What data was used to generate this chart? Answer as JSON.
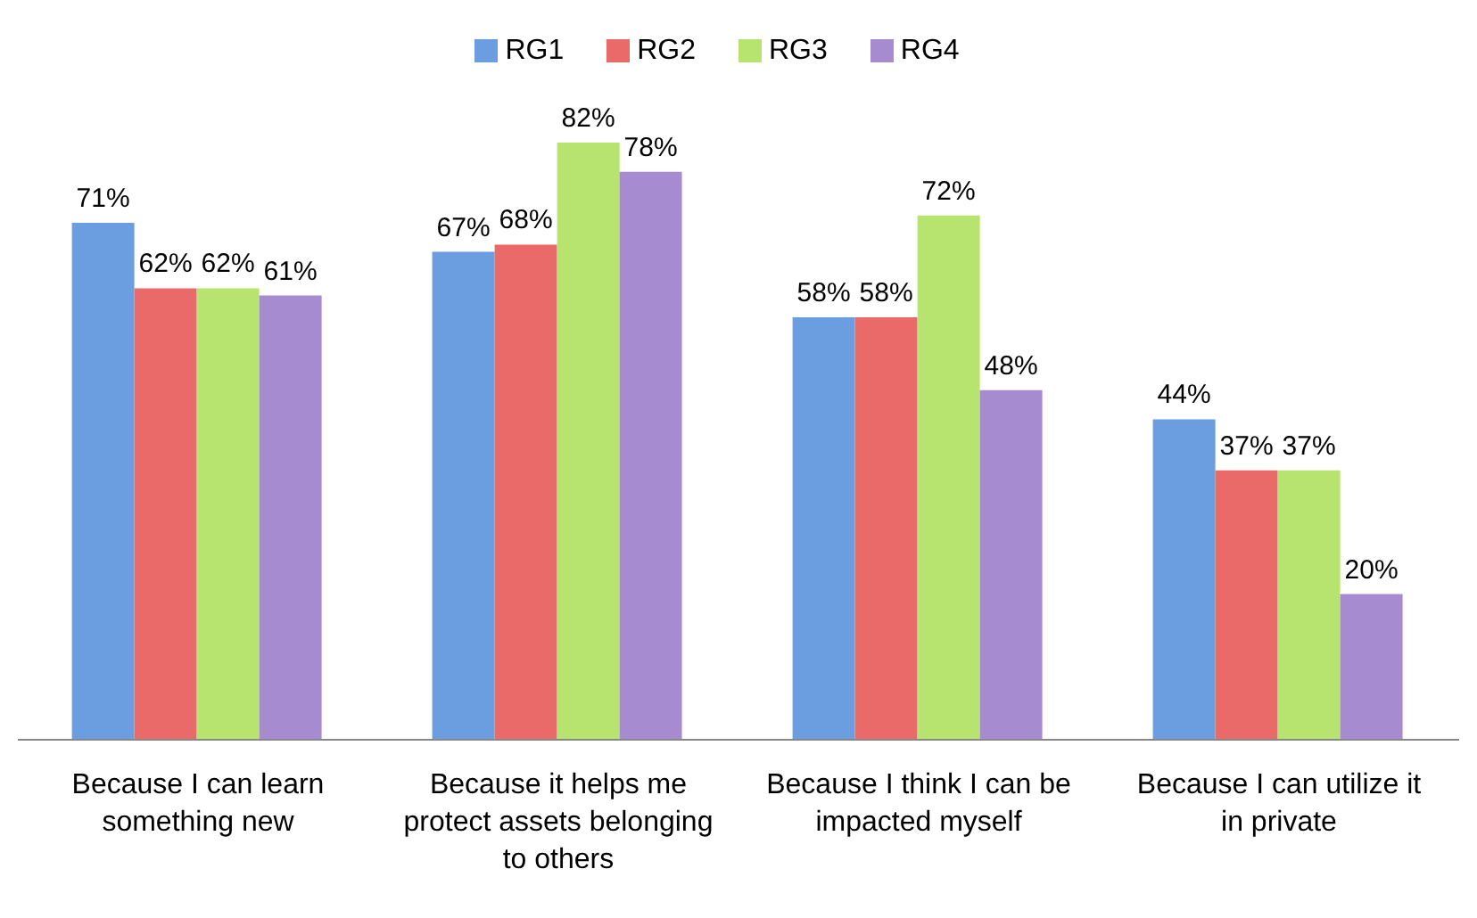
{
  "chart_data": {
    "type": "bar",
    "categories": [
      "Because I can learn something new",
      "Because it helps me protect assets belonging to others",
      "Because I think I can be impacted myself",
      "Because I can utilize it in private"
    ],
    "series": [
      {
        "name": "RG1",
        "color": "#6a9ee0",
        "values": [
          71,
          67,
          58,
          44
        ],
        "value_labels": [
          "71%",
          "67%",
          "58%",
          "44%"
        ]
      },
      {
        "name": "RG2",
        "color": "#ea6a6a",
        "values": [
          62,
          68,
          58,
          37
        ],
        "value_labels": [
          "62%",
          "68%",
          "58%",
          "37%"
        ]
      },
      {
        "name": "RG3",
        "color": "#b6e46e",
        "values": [
          62,
          82,
          72,
          37
        ],
        "value_labels": [
          "62%",
          "82%",
          "72%",
          "37%"
        ]
      },
      {
        "name": "RG4",
        "color": "#a78bd0",
        "values": [
          61,
          78,
          48,
          20
        ],
        "value_labels": [
          "61%",
          "78%",
          "48%",
          "20%"
        ]
      }
    ],
    "legend": "top",
    "grid": false
  }
}
